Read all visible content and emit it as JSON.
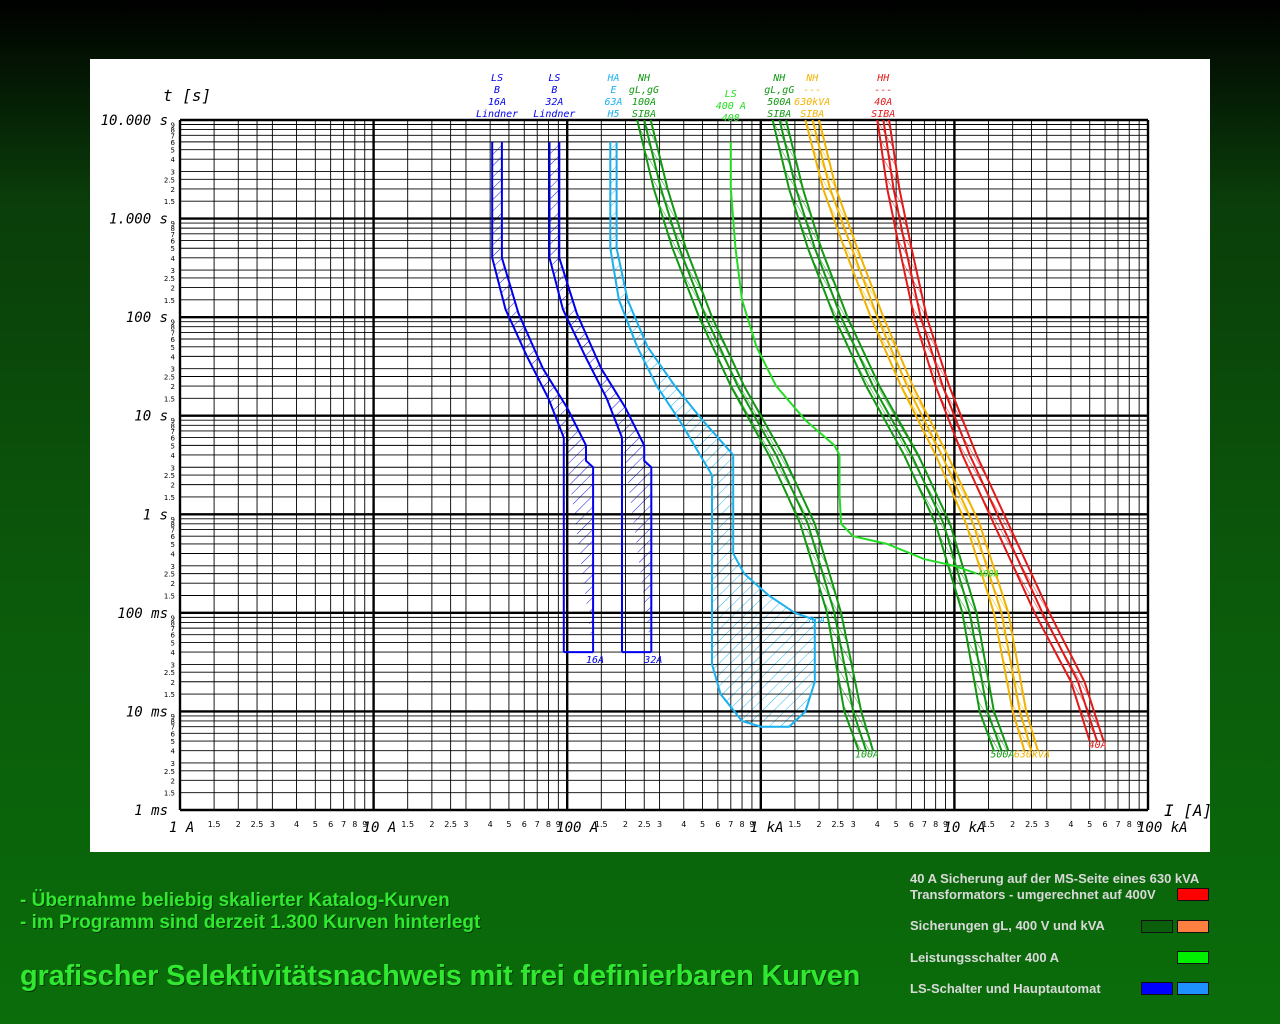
{
  "chart_data": {
    "type": "line",
    "x_scale": "log",
    "y_scale": "log",
    "xlim": [
      1,
      100000
    ],
    "ylim": [
      0.001,
      10000
    ],
    "xlabel": "I [A]",
    "ylabel": "t [s]",
    "grid": true,
    "x_major_ticks": [
      {
        "value": 1,
        "label": "1 A"
      },
      {
        "value": 10,
        "label": "10 A"
      },
      {
        "value": 100,
        "label": "100 A"
      },
      {
        "value": 1000,
        "label": "1 kA"
      },
      {
        "value": 10000,
        "label": "10 kA"
      },
      {
        "value": 100000,
        "label": "100 kA"
      }
    ],
    "y_major_ticks": [
      {
        "value": 10000,
        "label": "10.000 s"
      },
      {
        "value": 1000,
        "label": "1.000 s"
      },
      {
        "value": 100,
        "label": "100 s"
      },
      {
        "value": 10,
        "label": "10 s"
      },
      {
        "value": 1,
        "label": "1 s"
      },
      {
        "value": 0.1,
        "label": "100 ms"
      },
      {
        "value": 0.01,
        "label": "10 ms"
      },
      {
        "value": 0.001,
        "label": "1 ms"
      }
    ],
    "minor_tick_labels": [
      "1.5",
      "2",
      "2.5",
      "3",
      "4",
      "5",
      "6",
      "7",
      "8",
      "9"
    ],
    "series": [
      {
        "name": "LS B 16A Lindner",
        "color": "#0000ee",
        "hatched": true,
        "top_labels": [
          "LS",
          "B",
          "16A",
          "Lindner"
        ],
        "bottom_label": "16A",
        "left": [
          [
            41,
            6000
          ],
          [
            41,
            400
          ],
          [
            48,
            120
          ],
          [
            62,
            40
          ],
          [
            80,
            15
          ],
          [
            96,
            6
          ]
        ],
        "right": [
          [
            46,
            6000
          ],
          [
            46,
            400
          ],
          [
            56,
            110
          ],
          [
            75,
            30
          ],
          [
            100,
            12
          ],
          [
            125,
            5
          ],
          [
            125,
            3.5
          ],
          [
            136,
            3
          ],
          [
            136,
            0.04
          ]
        ],
        "bottom": [
          [
            96,
            0.04
          ],
          [
            136,
            0.04
          ]
        ],
        "inner": [
          [
            96,
            6
          ],
          [
            96,
            0.04
          ]
        ]
      },
      {
        "name": "LS B 32A Lindner",
        "color": "#0000ee",
        "hatched": true,
        "top_labels": [
          "LS",
          "B",
          "32A",
          "Lindner"
        ],
        "bottom_label": "32A",
        "left": [
          [
            81,
            6000
          ],
          [
            81,
            400
          ],
          [
            95,
            120
          ],
          [
            124,
            40
          ],
          [
            160,
            15
          ],
          [
            192,
            6
          ]
        ],
        "right": [
          [
            91,
            6000
          ],
          [
            91,
            400
          ],
          [
            112,
            110
          ],
          [
            150,
            30
          ],
          [
            200,
            12
          ],
          [
            250,
            5
          ],
          [
            250,
            3.5
          ],
          [
            272,
            3
          ],
          [
            272,
            0.04
          ]
        ],
        "bottom": [
          [
            192,
            0.04
          ],
          [
            272,
            0.04
          ]
        ],
        "inner": [
          [
            192,
            6
          ],
          [
            192,
            0.04
          ]
        ]
      },
      {
        "name": "HA E 63A",
        "color": "#1ab0ee",
        "hatched": true,
        "top_labels": [
          "HA",
          "E",
          "63A",
          "H5"
        ],
        "left": [
          [
            167,
            6000
          ],
          [
            167,
            500
          ],
          [
            185,
            150
          ],
          [
            230,
            50
          ],
          [
            290,
            20
          ],
          [
            380,
            9
          ],
          [
            560,
            2.5
          ],
          [
            560,
            0.03
          ],
          [
            620,
            0.015
          ],
          [
            800,
            0.008
          ],
          [
            1000,
            0.007
          ],
          [
            1200,
            0.007
          ]
        ],
        "right": [
          [
            180,
            6000
          ],
          [
            180,
            500
          ],
          [
            205,
            150
          ],
          [
            260,
            50
          ],
          [
            360,
            20
          ],
          [
            500,
            9
          ],
          [
            720,
            4
          ],
          [
            720,
            0.4
          ],
          [
            820,
            0.25
          ],
          [
            1100,
            0.15
          ],
          [
            1500,
            0.1
          ],
          [
            1900,
            0.085
          ],
          [
            1900,
            0.02
          ],
          [
            1700,
            0.01
          ],
          [
            1400,
            0.007
          ],
          [
            1200,
            0.007
          ]
        ]
      },
      {
        "name": "NH gL,gG 100A SIBA",
        "color": "#119a11",
        "top_labels": [
          "NH",
          "gL,gG",
          "100A",
          "SIBA"
        ],
        "bottom_label": "100A",
        "lines": [
          [
            [
              230,
              10000
            ],
            [
              280,
              2000
            ],
            [
              350,
              500
            ],
            [
              480,
              100
            ],
            [
              700,
              20
            ],
            [
              1100,
              4
            ],
            [
              1600,
              0.8
            ],
            [
              2200,
              0.1
            ],
            [
              2700,
              0.01
            ],
            [
              3200,
              0.004
            ]
          ],
          [
            [
              250,
              10000
            ],
            [
              305,
              2000
            ],
            [
              380,
              500
            ],
            [
              520,
              100
            ],
            [
              760,
              20
            ],
            [
              1200,
              4
            ],
            [
              1750,
              0.8
            ],
            [
              2400,
              0.1
            ],
            [
              3000,
              0.01
            ],
            [
              3500,
              0.004
            ]
          ],
          [
            [
              270,
              10000
            ],
            [
              330,
              2000
            ],
            [
              410,
              500
            ],
            [
              560,
              100
            ],
            [
              820,
              20
            ],
            [
              1300,
              4
            ],
            [
              1900,
              0.8
            ],
            [
              2600,
              0.1
            ],
            [
              3300,
              0.01
            ],
            [
              3800,
              0.004
            ]
          ]
        ]
      },
      {
        "name": "NH gL,gG 500A SIBA",
        "color": "#119a11",
        "top_labels": [
          "NH",
          "gL,gG",
          "500A",
          "SIBA"
        ],
        "bottom_label": "500A",
        "lines": [
          [
            [
              1150,
              10000
            ],
            [
              1400,
              2000
            ],
            [
              1750,
              500
            ],
            [
              2400,
              100
            ],
            [
              3500,
              20
            ],
            [
              5500,
              4
            ],
            [
              8000,
              0.8
            ],
            [
              11000,
              0.1
            ],
            [
              13500,
              0.01
            ],
            [
              16000,
              0.004
            ]
          ],
          [
            [
              1250,
              10000
            ],
            [
              1520,
              2000
            ],
            [
              1900,
              500
            ],
            [
              2600,
              100
            ],
            [
              3800,
              20
            ],
            [
              6000,
              4
            ],
            [
              8800,
              0.8
            ],
            [
              12000,
              0.1
            ],
            [
              14800,
              0.01
            ],
            [
              17500,
              0.004
            ]
          ],
          [
            [
              1350,
              10000
            ],
            [
              1650,
              2000
            ],
            [
              2050,
              500
            ],
            [
              2800,
              100
            ],
            [
              4100,
              20
            ],
            [
              6500,
              4
            ],
            [
              9500,
              0.8
            ],
            [
              13000,
              0.1
            ],
            [
              16000,
              0.01
            ],
            [
              19000,
              0.004
            ]
          ]
        ]
      },
      {
        "name": "NH 630kVA SIBA",
        "color": "#f2b300",
        "top_labels": [
          "NH",
          "---",
          "630kVA",
          "SIBA"
        ],
        "bottom_label": "630kVA",
        "lines": [
          [
            [
              1700,
              10000
            ],
            [
              2100,
              2000
            ],
            [
              2700,
              500
            ],
            [
              3700,
              100
            ],
            [
              5300,
              20
            ],
            [
              8000,
              4
            ],
            [
              11500,
              0.8
            ],
            [
              16000,
              0.1
            ],
            [
              20000,
              0.01
            ],
            [
              23000,
              0.004
            ]
          ],
          [
            [
              1850,
              10000
            ],
            [
              2280,
              2000
            ],
            [
              2950,
              500
            ],
            [
              4000,
              100
            ],
            [
              5700,
              20
            ],
            [
              8600,
              4
            ],
            [
              12500,
              0.8
            ],
            [
              17500,
              0.1
            ],
            [
              21800,
              0.01
            ],
            [
              25000,
              0.004
            ]
          ],
          [
            [
              2000,
              10000
            ],
            [
              2450,
              2000
            ],
            [
              3150,
              500
            ],
            [
              4300,
              100
            ],
            [
              6100,
              20
            ],
            [
              9200,
              4
            ],
            [
              13500,
              0.8
            ],
            [
              19000,
              0.1
            ],
            [
              23500,
              0.01
            ],
            [
              27000,
              0.004
            ]
          ]
        ]
      },
      {
        "name": "HH 40A SIBA",
        "color": "#e41a1a",
        "top_labels": [
          "HH",
          "---",
          "40A",
          "SIBA"
        ],
        "bottom_label": "40A",
        "lines": [
          [
            [
              4000,
              10000
            ],
            [
              4500,
              2000
            ],
            [
              5200,
              500
            ],
            [
              6200,
              100
            ],
            [
              8000,
              20
            ],
            [
              11000,
              4
            ],
            [
              16000,
              0.8
            ],
            [
              26000,
              0.1
            ],
            [
              40000,
              0.02
            ],
            [
              50000,
              0.005
            ]
          ],
          [
            [
              4300,
              10000
            ],
            [
              4850,
              2000
            ],
            [
              5600,
              500
            ],
            [
              6700,
              100
            ],
            [
              8700,
              20
            ],
            [
              12000,
              4
            ],
            [
              17500,
              0.8
            ],
            [
              28500,
              0.1
            ],
            [
              43500,
              0.02
            ],
            [
              54500,
              0.005
            ]
          ],
          [
            [
              4600,
              10000
            ],
            [
              5200,
              2000
            ],
            [
              6000,
              500
            ],
            [
              7200,
              100
            ],
            [
              9400,
              20
            ],
            [
              13000,
              4
            ],
            [
              19000,
              0.8
            ],
            [
              31000,
              0.1
            ],
            [
              47000,
              0.02
            ],
            [
              59000,
              0.005
            ]
          ]
        ]
      },
      {
        "name": "LS 400 A",
        "color": "#22dd22",
        "top_labels": [
          "LS",
          "400 A",
          "408"
        ],
        "point_labels": [
          "400A",
          "8pA"
        ],
        "lines": [
          [
            [
              700,
              6000
            ],
            [
              700,
              2000
            ],
            [
              740,
              500
            ],
            [
              800,
              150
            ],
            [
              950,
              50
            ],
            [
              1200,
              20
            ],
            [
              1700,
              9
            ],
            [
              2400,
              5
            ],
            [
              2550,
              4
            ],
            [
              2550,
              1.6
            ],
            [
              2600,
              0.8
            ],
            [
              3000,
              0.6
            ],
            [
              4500,
              0.5
            ],
            [
              7000,
              0.35
            ],
            [
              10000,
              0.3
            ],
            [
              13000,
              0.25
            ]
          ]
        ]
      }
    ]
  },
  "captions": {
    "feature_1": "- Übernahme beliebig skalierter Katalog-Kurven",
    "feature_2": "- im Programm sind derzeit 1.300 Kurven hinterlegt",
    "headline": "grafischer Selektivitätsnachweis mit frei definierbaren Kurven"
  },
  "legend": [
    {
      "text": "40 A Sicherung auf der MS-Seite eines 630 kVA Transformators - umgerechnet auf 400V",
      "swatches": [
        "#ff0000"
      ]
    },
    {
      "text": "Sicherungen gL, 400 V und kVA",
      "swatches": [
        "#0b5e0b",
        "#ff7f40"
      ]
    },
    {
      "text": "Leistungsschalter 400 A",
      "swatches": [
        "#00ee00"
      ]
    },
    {
      "text": "LS-Schalter und Hauptautomat",
      "swatches": [
        "#0000ff",
        "#1e90ff"
      ]
    }
  ]
}
